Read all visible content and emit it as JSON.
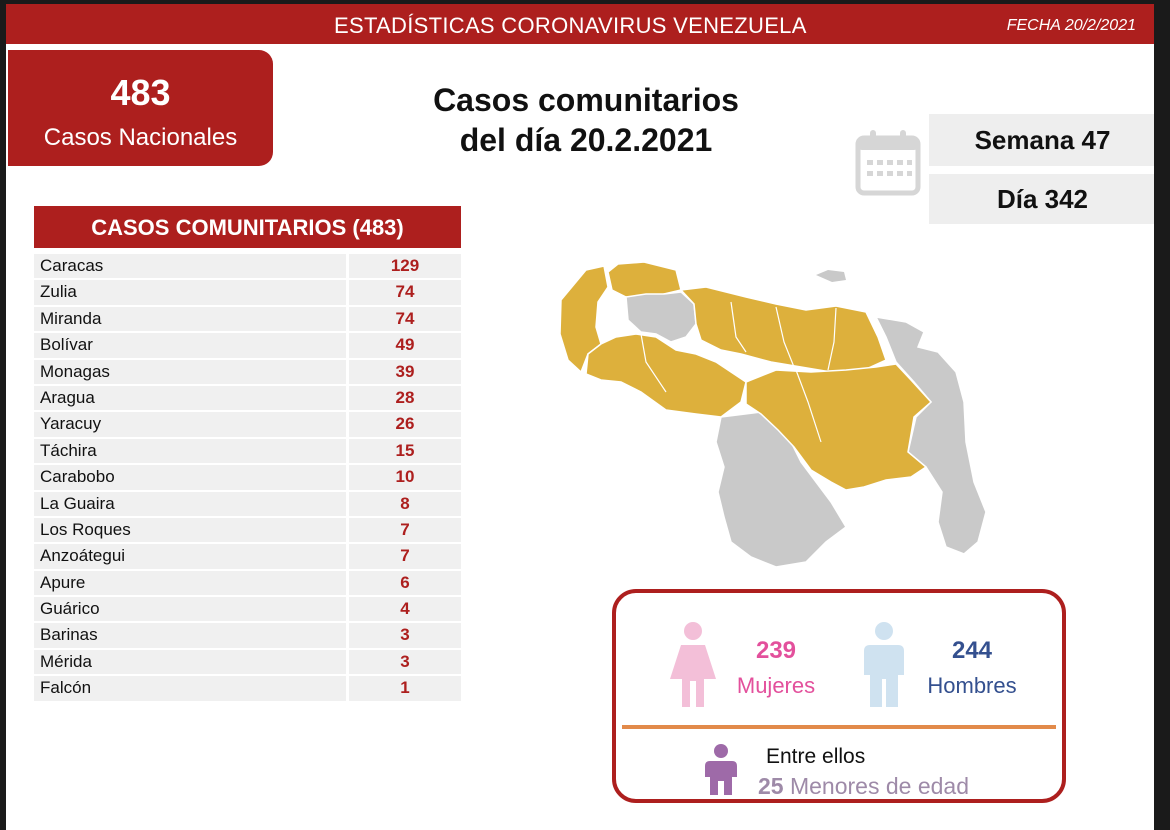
{
  "header": {
    "title": "ESTADÍSTICAS CORONAVIRUS VENEZUELA",
    "date": "FECHA 20/2/2021"
  },
  "national": {
    "count": "483",
    "label": "Casos Nacionales"
  },
  "headline": {
    "line1": "Casos comunitarios",
    "line2": "del día 20.2.2021"
  },
  "period": {
    "week": "Semana 47",
    "day": "Día 342"
  },
  "table": {
    "title": "CASOS COMUNITARIOS (483)",
    "rows": [
      {
        "name": "Caracas",
        "value": "129"
      },
      {
        "name": "Zulia",
        "value": "74"
      },
      {
        "name": "Miranda",
        "value": "74"
      },
      {
        "name": "Bolívar",
        "value": "49"
      },
      {
        "name": "Monagas",
        "value": "39"
      },
      {
        "name": "Aragua",
        "value": "28"
      },
      {
        "name": "Yaracuy",
        "value": "26"
      },
      {
        "name": "Táchira",
        "value": "15"
      },
      {
        "name": "Carabobo",
        "value": "10"
      },
      {
        "name": "La Guaira",
        "value": "8"
      },
      {
        "name": "Los Roques",
        "value": "7"
      },
      {
        "name": "Anzoátegui",
        "value": "7"
      },
      {
        "name": "Apure",
        "value": "6"
      },
      {
        "name": "Guárico",
        "value": "4"
      },
      {
        "name": "Barinas",
        "value": "3"
      },
      {
        "name": "Mérida",
        "value": "3"
      },
      {
        "name": "Falcón",
        "value": "1"
      }
    ]
  },
  "demographics": {
    "women_count": "239",
    "women_label": "Mujeres",
    "men_count": "244",
    "men_label": "Hombres",
    "minors_intro": "Entre ellos",
    "minors_count": "25",
    "minors_label": "Menores de edad"
  },
  "colors": {
    "brand_red": "#ad1f1e",
    "map_highlight": "#ddb03c",
    "map_base": "#c9c9c9",
    "women": "#e3509c",
    "men": "#34508f",
    "minors": "#9e8aa8"
  },
  "icons": [
    "calendar-icon",
    "female-icon",
    "male-icon",
    "child-icon"
  ]
}
